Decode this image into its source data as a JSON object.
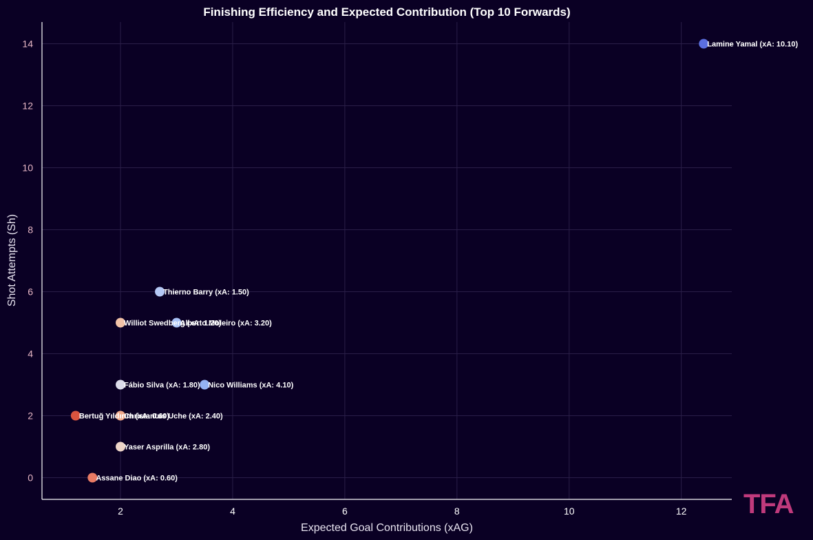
{
  "chart_data": {
    "type": "scatter",
    "title": "Finishing Efficiency and Expected Contribution (Top 10 Forwards)",
    "xlabel": "Expected Goal Contributions (xAG)",
    "ylabel": "Shot Attempts (Sh)",
    "xlim": [
      0.6,
      12.9
    ],
    "ylim": [
      -0.7,
      14.7
    ],
    "xticks": [
      2,
      4,
      6,
      8,
      10,
      12
    ],
    "yticks": [
      0,
      2,
      4,
      6,
      8,
      10,
      12,
      14
    ],
    "grid": true,
    "points": [
      {
        "x": 12.4,
        "y": 14,
        "label": "Lamine Yamal (xA: 10.10)",
        "color": "#5b6fe0"
      },
      {
        "x": 2.7,
        "y": 6,
        "label": "Thierno Barry (xA: 1.50)",
        "color": "#b5c8f5"
      },
      {
        "x": 2.0,
        "y": 5,
        "label": "Williot Swedberg (xA: 1.20)",
        "color": "#f2c3a8"
      },
      {
        "x": 3.0,
        "y": 5,
        "label": "Alberto Moleiro (xA: 3.20)",
        "color": "#a9c2f7"
      },
      {
        "x": 2.0,
        "y": 3,
        "label": "Fábio Silva (xA: 1.80)",
        "color": "#dcdcea"
      },
      {
        "x": 3.5,
        "y": 3,
        "label": "Nico Williams (xA: 4.10)",
        "color": "#94b2f4"
      },
      {
        "x": 1.2,
        "y": 2,
        "label": "Bertuğ Yıldırım (xA: 0.60)",
        "color": "#d9543f"
      },
      {
        "x": 2.0,
        "y": 2,
        "label": "Christantus Uche (xA: 2.40)",
        "color": "#f1a98b"
      },
      {
        "x": 2.0,
        "y": 1,
        "label": "Yaser Asprilla (xA: 2.80)",
        "color": "#eed5c8"
      },
      {
        "x": 1.5,
        "y": 0,
        "label": "Assane Diao (xA: 0.60)",
        "color": "#e87a64"
      }
    ]
  },
  "logo": {
    "text": "TFA",
    "color": "#c03a7c"
  }
}
